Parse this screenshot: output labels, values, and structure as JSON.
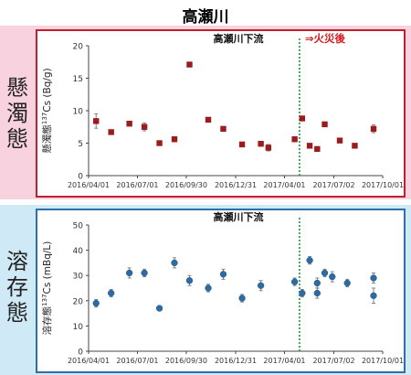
{
  "page": {
    "title": "高瀬川"
  },
  "labels": {
    "top_side": [
      "懸",
      "濁",
      "態"
    ],
    "bottom_side": [
      "溶",
      "存",
      "態"
    ]
  },
  "colors": {
    "top_band": "#f9d2df",
    "bottom_band": "#cfe9f6",
    "top_border": "#c0202e",
    "bottom_border": "#2f6fa7",
    "top_marker": "#9b1c1c",
    "bottom_marker": "#2a6da6",
    "fire_line": "#1a9a3a",
    "after_fire_text": "#d4161e"
  },
  "chart_data": [
    {
      "type": "scatter",
      "title": "高瀬川下流",
      "annotation": "⇒火災後",
      "ylabel_pre": "懸濁態",
      "ylabel_sup": "137",
      "ylabel_post": "Cs (Bq/g)",
      "ylim": [
        0,
        20
      ],
      "yticks": [
        0,
        5,
        10,
        15,
        20
      ],
      "xlim": [
        "2016-04-01",
        "2017-10-01"
      ],
      "xticks": [
        "2016/04/01",
        "2016/07/01",
        "2016/09/30",
        "2016/12/31",
        "2017/04/01",
        "2017/07/02",
        "2017/10/01"
      ],
      "event_date": "2017-04-29",
      "grid": false,
      "marker": "square",
      "points": [
        {
          "x": "2016-04-15",
          "y": 8.4,
          "err": 1.1
        },
        {
          "x": "2016-05-13",
          "y": 6.7,
          "err": 0.3
        },
        {
          "x": "2016-06-16",
          "y": 8.0,
          "err": 0.3
        },
        {
          "x": "2016-07-14",
          "y": 7.5,
          "err": 0.6
        },
        {
          "x": "2016-08-11",
          "y": 5.0,
          "err": 0.2
        },
        {
          "x": "2016-09-08",
          "y": 5.6,
          "err": 0.2
        },
        {
          "x": "2016-10-06",
          "y": 17.1,
          "err": 0.3
        },
        {
          "x": "2016-11-10",
          "y": 8.6,
          "err": 0.3
        },
        {
          "x": "2016-12-08",
          "y": 7.2,
          "err": 0.3
        },
        {
          "x": "2017-01-12",
          "y": 4.8,
          "err": 0.2
        },
        {
          "x": "2017-02-16",
          "y": 4.9,
          "err": 0.3
        },
        {
          "x": "2017-03-02",
          "y": 4.3,
          "err": 0.5
        },
        {
          "x": "2017-04-20",
          "y": 5.6,
          "err": 0.3
        },
        {
          "x": "2017-05-04",
          "y": 8.8,
          "err": 0.3
        },
        {
          "x": "2017-05-18",
          "y": 4.6,
          "err": 0.2
        },
        {
          "x": "2017-06-01",
          "y": 4.1,
          "err": 0.3
        },
        {
          "x": "2017-06-15",
          "y": 7.9,
          "err": 0.3
        },
        {
          "x": "2017-07-13",
          "y": 5.4,
          "err": 0.2
        },
        {
          "x": "2017-08-10",
          "y": 4.6,
          "err": 0.2
        },
        {
          "x": "2017-09-14",
          "y": 7.2,
          "err": 0.6
        }
      ]
    },
    {
      "type": "scatter",
      "title": "高瀬川下流",
      "ylabel_pre": "溶存態",
      "ylabel_sup": "137",
      "ylabel_post": "Cs (mBq/L)",
      "ylim": [
        0,
        50
      ],
      "yticks": [
        0,
        10,
        20,
        30,
        40,
        50
      ],
      "xlim": [
        "2016-04-01",
        "2017-10-01"
      ],
      "xticks": [
        "2016/04/01",
        "2016/07/01",
        "2016/09/30",
        "2016/12/31",
        "2017/04/01",
        "2017/07/02",
        "2017/10/01"
      ],
      "event_date": "2017-04-29",
      "grid": false,
      "marker": "circle",
      "points": [
        {
          "x": "2016-04-15",
          "y": 19.0,
          "err": 1.5
        },
        {
          "x": "2016-05-13",
          "y": 23.0,
          "err": 1.5
        },
        {
          "x": "2016-06-16",
          "y": 31.0,
          "err": 2.0
        },
        {
          "x": "2016-07-14",
          "y": 31.0,
          "err": 1.5
        },
        {
          "x": "2016-08-11",
          "y": 17.0,
          "err": 0.8
        },
        {
          "x": "2016-09-08",
          "y": 35.0,
          "err": 2.0
        },
        {
          "x": "2016-10-06",
          "y": 28.0,
          "err": 2.0
        },
        {
          "x": "2016-11-10",
          "y": 25.0,
          "err": 1.5
        },
        {
          "x": "2016-12-08",
          "y": 30.5,
          "err": 2.0
        },
        {
          "x": "2017-01-12",
          "y": 21.0,
          "err": 1.5
        },
        {
          "x": "2017-02-16",
          "y": 26.0,
          "err": 2.0
        },
        {
          "x": "2017-04-20",
          "y": 27.5,
          "err": 1.5
        },
        {
          "x": "2017-05-04",
          "y": 23.0,
          "err": 1.5
        },
        {
          "x": "2017-05-18",
          "y": 36.0,
          "err": 1.5
        },
        {
          "x": "2017-06-01",
          "y": 23.0,
          "err": 2.0
        },
        {
          "x": "2017-06-01",
          "y": 27.0,
          "err": 2.0
        },
        {
          "x": "2017-06-15",
          "y": 31.0,
          "err": 1.5
        },
        {
          "x": "2017-06-29",
          "y": 29.5,
          "err": 2.0
        },
        {
          "x": "2017-07-27",
          "y": 27.0,
          "err": 1.5
        },
        {
          "x": "2017-09-14",
          "y": 22.0,
          "err": 3.0
        },
        {
          "x": "2017-09-14",
          "y": 29.0,
          "err": 2.0
        }
      ]
    }
  ]
}
